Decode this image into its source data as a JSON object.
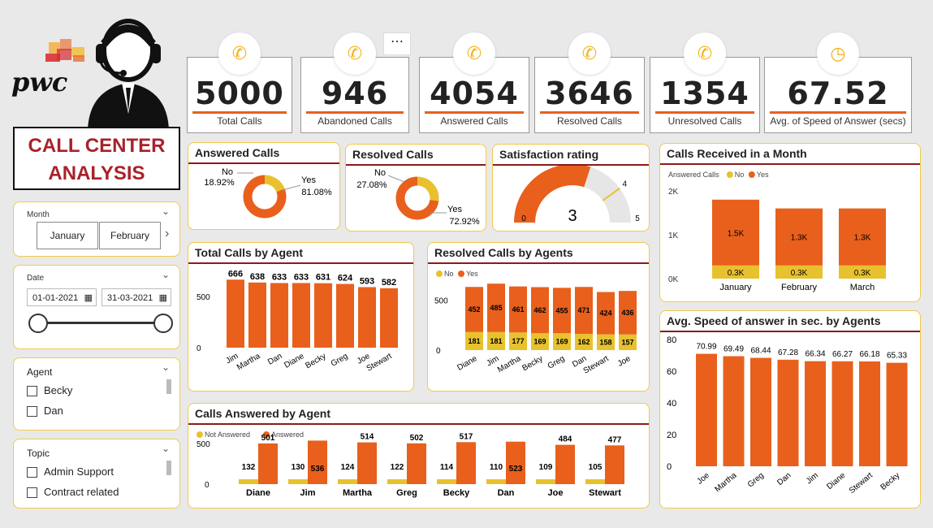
{
  "logo": {
    "text": "pwc"
  },
  "header": {
    "title_line1": "CALL CENTER",
    "title_line2": "ANALYSIS"
  },
  "colors": {
    "orange": "#e8601c",
    "yellow": "#e8c22e",
    "accent_red": "#8b1a1a",
    "card_border": "#f2c94c"
  },
  "kpis": [
    {
      "value": "5000",
      "label": "Total Calls",
      "icon": "phone-icon"
    },
    {
      "value": "946",
      "label": "Abandoned Calls",
      "icon": "phone-missed-icon"
    },
    {
      "value": "4054",
      "label": "Answered Calls",
      "icon": "phone-ringing-icon"
    },
    {
      "value": "3646",
      "label": "Resolved Calls",
      "icon": "phone-check-icon"
    },
    {
      "value": "1354",
      "label": "Unresolved Calls",
      "icon": "phone-x-icon"
    },
    {
      "value": "67.52",
      "label": "Avg. of Speed of Answer (secs)",
      "icon": "clock-icon"
    }
  ],
  "slicers": {
    "month": {
      "label": "Month",
      "buttons": [
        "January",
        "February"
      ]
    },
    "date": {
      "label": "Date",
      "start": "01-01-2021",
      "end": "31-03-2021"
    },
    "agent": {
      "label": "Agent",
      "items": [
        "Becky",
        "Dan"
      ]
    },
    "topic": {
      "label": "Topic",
      "items": [
        "Admin Support",
        "Contract related"
      ]
    }
  },
  "chart_data": [
    {
      "id": "answered_calls",
      "type": "pie",
      "title": "Answered Calls",
      "slices": [
        {
          "name": "No",
          "value": 18.92,
          "label": "18.92%"
        },
        {
          "name": "Yes",
          "value": 81.08,
          "label": "81.08%"
        }
      ]
    },
    {
      "id": "resolved_calls",
      "type": "pie",
      "title": "Resolved Calls",
      "slices": [
        {
          "name": "No",
          "value": 27.08,
          "label": "27.08%"
        },
        {
          "name": "Yes",
          "value": 72.92,
          "label": "72.92%"
        }
      ]
    },
    {
      "id": "satisfaction",
      "type": "gauge",
      "title": "Satisfaction rating",
      "value": 3,
      "min": 0,
      "max": 5,
      "target": 4,
      "value_label": "3",
      "min_label": "0",
      "max_label": "5",
      "target_label": "4"
    },
    {
      "id": "calls_month",
      "type": "bar",
      "stacked": true,
      "title": "Calls Received in a Month",
      "legend_title": "Answered Calls",
      "categories": [
        "January",
        "February",
        "March"
      ],
      "series": [
        {
          "name": "No",
          "values": [
            300,
            300,
            300
          ],
          "labels": [
            "0.3K",
            "0.3K",
            "0.3K"
          ]
        },
        {
          "name": "Yes",
          "values": [
            1500,
            1300,
            1300
          ],
          "labels": [
            "1.5K",
            "1.3K",
            "1.3K"
          ]
        }
      ],
      "ylim": [
        0,
        2000
      ],
      "yticks": [
        "0K",
        "1K",
        "2K"
      ]
    },
    {
      "id": "total_by_agent",
      "type": "bar",
      "title": "Total Calls by Agent",
      "categories": [
        "Jim",
        "Martha",
        "Dan",
        "Diane",
        "Becky",
        "Greg",
        "Joe",
        "Stewart"
      ],
      "values": [
        666,
        638,
        633,
        633,
        631,
        624,
        593,
        582
      ],
      "ylim": [
        0,
        700
      ],
      "yticks": [
        "0",
        "500"
      ]
    },
    {
      "id": "resolved_by_agent",
      "type": "bar",
      "stacked": true,
      "title": "Resolved Calls by Agents",
      "categories": [
        "Diane",
        "Jim",
        "Martha",
        "Becky",
        "Greg",
        "Dan",
        "Stewart",
        "Joe"
      ],
      "series": [
        {
          "name": "No",
          "values": [
            181,
            181,
            177,
            169,
            169,
            162,
            158,
            157
          ]
        },
        {
          "name": "Yes",
          "values": [
            452,
            485,
            461,
            462,
            455,
            471,
            424,
            436
          ]
        }
      ],
      "ylim": [
        0,
        700
      ],
      "yticks": [
        "0",
        "500"
      ]
    },
    {
      "id": "answered_by_agent",
      "type": "bar",
      "title": "Calls Answered by Agent",
      "categories": [
        "Diane",
        "Jim",
        "Martha",
        "Greg",
        "Becky",
        "Dan",
        "Joe",
        "Stewart"
      ],
      "series": [
        {
          "name": "Not Answered",
          "values": [
            132,
            130,
            124,
            122,
            114,
            110,
            109,
            105
          ]
        },
        {
          "name": "Answered",
          "values": [
            501,
            536,
            514,
            502,
            517,
            523,
            484,
            477
          ]
        }
      ],
      "ylim": [
        0,
        600
      ],
      "yticks": [
        "0",
        "500"
      ]
    },
    {
      "id": "speed_by_agent",
      "type": "bar",
      "title": "Avg. Speed of answer in sec. by Agents",
      "categories": [
        "Joe",
        "Martha",
        "Greg",
        "Dan",
        "Jim",
        "Diane",
        "Stewart",
        "Becky"
      ],
      "values": [
        70.99,
        69.49,
        68.44,
        67.28,
        66.34,
        66.27,
        66.18,
        65.33
      ],
      "value_labels": [
        "70.99",
        "69.49",
        "68.44",
        "67.28",
        "66.34",
        "66.27",
        "66.18",
        "65.33"
      ],
      "ylim": [
        0,
        80
      ],
      "yticks": [
        "0",
        "20",
        "40",
        "60",
        "80"
      ]
    }
  ]
}
